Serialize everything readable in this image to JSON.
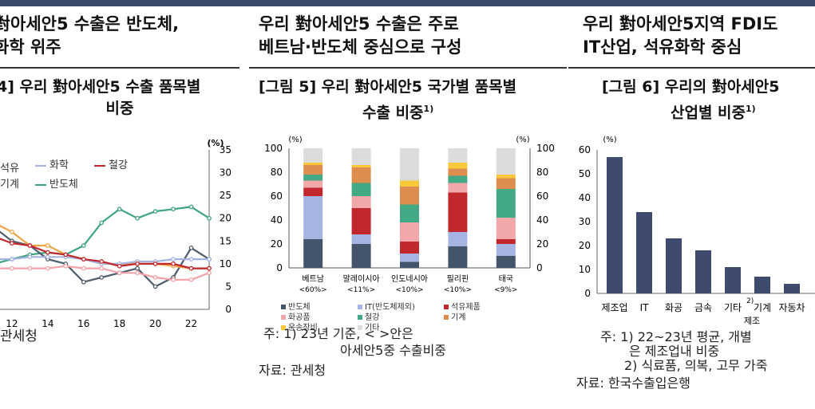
{
  "panel1": {
    "heading_line1": "對아세안5 수출은 반도체,",
    "heading_line2": "화학 위주",
    "figure_title_line1": "4] 우리 對아세안5 수출 품목별",
    "figure_title_line2": "비중",
    "note": "관세청",
    "unit": "(%)"
  },
  "panel2": {
    "heading_line1": "우리 對아세안5 수출은 주로",
    "heading_line2": "베트남·반도체 중심으로 구성",
    "figure_title_line1": "[그림 5] 우리 對아세안5 국가별 품목별",
    "figure_title_line2": "수출 비중",
    "figure_title_sup": "1)",
    "note_line1": "주: 1) 23년 기준, < >안은",
    "note_line2": "아세안5중 수출비중",
    "source": "자료: 관세청",
    "unit_left": "(%)",
    "unit_right": "(%)"
  },
  "panel3": {
    "heading_line1": "우리 對아세안5지역 FDI도",
    "heading_line2": "IT산업, 석유화학 중심",
    "figure_title_line1": "[그림 6] 우리의 對아세안5",
    "figure_title_line2": "산업별 비중",
    "figure_title_sup": "1)",
    "note_line1": "주: 1) 22~23년 평균, 개별",
    "note_line2": "은 제조업내 비중",
    "note_line3": "2) 식료품, 의복, 고무 가죽",
    "source": "자료: 한국수출입은행",
    "unit": "(%)",
    "axis_label": "제조"
  },
  "chart_data": [
    {
      "type": "line",
      "x": [
        10,
        11,
        12,
        13,
        14,
        15,
        16,
        17,
        18,
        19,
        20,
        21,
        22,
        23
      ],
      "ylim": [
        0,
        35
      ],
      "y_ticks": [
        0,
        5,
        10,
        15,
        20,
        25,
        30,
        35
      ],
      "x_ticks": [
        12,
        14,
        16,
        18,
        20,
        22
      ],
      "series": [
        {
          "name": "반도체",
          "color": "#3ea37e",
          "values": [
            7,
            10,
            11,
            12,
            12.5,
            12,
            14,
            19,
            22,
            20,
            21.5,
            22,
            22.5,
            20
          ]
        },
        {
          "name": "기계",
          "color": "#4e5d6c",
          "values": [
            17,
            18,
            15,
            14,
            11,
            10,
            6,
            7,
            8,
            9,
            5,
            7,
            13.5,
            11
          ]
        },
        {
          "name": "석유",
          "color": "#f0a347",
          "values": [
            20,
            19,
            17,
            14,
            14,
            12,
            11,
            10,
            10,
            10,
            10,
            9.5,
            9,
            9
          ]
        },
        {
          "name": "화학",
          "color": "#a3b3e3",
          "values": [
            11,
            11,
            11,
            11.5,
            11.5,
            11.5,
            11,
            10,
            10,
            10.5,
            10.5,
            11,
            11,
            11
          ]
        },
        {
          "name": "철강",
          "color": "#c0282d",
          "values": [
            18.5,
            16,
            14.5,
            14,
            12.5,
            12,
            11,
            10.5,
            9.5,
            10,
            10,
            10,
            9,
            9
          ]
        },
        {
          "name": "",
          "color": "#f4a3a8",
          "values": [
            9,
            9,
            9,
            9,
            9,
            9.5,
            9,
            9,
            8,
            8,
            7,
            6.5,
            6.5,
            8
          ]
        }
      ]
    },
    {
      "type": "bar",
      "stacked": true,
      "categories": [
        "베트남",
        "말레이시아",
        "인도네시아",
        "필리핀",
        "태국"
      ],
      "category_shares": [
        "<60%>",
        "<11%>",
        "<10%>",
        "<10%>",
        "<9%>"
      ],
      "ylim": [
        0,
        100
      ],
      "y_ticks": [
        0,
        20,
        40,
        60,
        80,
        100
      ],
      "series": [
        {
          "name": "반도체",
          "color": "#44546a",
          "values": [
            24,
            20,
            5,
            18,
            10
          ]
        },
        {
          "name": "IT(반도체제외)",
          "color": "#a5b4e2",
          "values": [
            36,
            8,
            7,
            12,
            10
          ]
        },
        {
          "name": "석유제품",
          "color": "#c0282d",
          "values": [
            7,
            22,
            10,
            33,
            4
          ]
        },
        {
          "name": "화공품",
          "color": "#f2a8ab",
          "values": [
            6,
            10,
            16,
            8,
            18
          ]
        },
        {
          "name": "철강",
          "color": "#43a884",
          "values": [
            5,
            11,
            15,
            6,
            24
          ]
        },
        {
          "name": "기계",
          "color": "#dd8d4d",
          "values": [
            8,
            13,
            15,
            6,
            9
          ]
        },
        {
          "name": "운송장비",
          "color": "#f7c93a",
          "values": [
            2,
            2,
            5,
            5,
            3
          ]
        },
        {
          "name": "기타",
          "color": "#dcdcdc",
          "values": [
            12,
            14,
            27,
            12,
            22
          ]
        }
      ]
    },
    {
      "type": "bar",
      "categories": [
        "제조업",
        "IT",
        "화공",
        "금속",
        "기타",
        "기계",
        "자동차"
      ],
      "category_sups": [
        "",
        "",
        "",
        "",
        "2)",
        "",
        ""
      ],
      "values": [
        57,
        34,
        23,
        18,
        11,
        7,
        4
      ],
      "ylim": [
        0,
        60
      ],
      "y_ticks": [
        0,
        10,
        20,
        30,
        40,
        50,
        60
      ],
      "color": "#3f4b6d"
    }
  ]
}
